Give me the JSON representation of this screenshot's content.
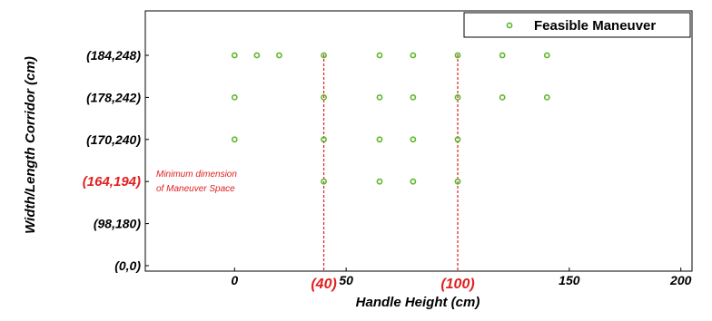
{
  "chart_data": {
    "type": "scatter",
    "xlabel": "Handle Height  (cm)",
    "ylabel": "Width/Length Corridor (cm)",
    "xlim": [
      -40,
      205
    ],
    "x_ticks": [
      {
        "value": 0,
        "label": "0",
        "highlight": false
      },
      {
        "value": 40,
        "label": "(40)",
        "highlight": true
      },
      {
        "value": 50,
        "label": "50",
        "highlight": false
      },
      {
        "value": 100,
        "label": "(100)",
        "highlight": true
      },
      {
        "value": 150,
        "label": "150",
        "highlight": false
      },
      {
        "value": 200,
        "label": "200",
        "highlight": false
      }
    ],
    "y_categories": [
      "(0,0)",
      "(98,180)",
      "(164,194)",
      "(170,240)",
      "(178,242)",
      "(184,248)"
    ],
    "y_highlight": [
      "(164,194)"
    ],
    "legend": {
      "label": "Feasible Maneuver",
      "position": "top-right"
    },
    "series": [
      {
        "name": "Feasible Maneuver",
        "color": "#5cb82e",
        "points": [
          {
            "x": 0,
            "y": "(184,248)"
          },
          {
            "x": 10,
            "y": "(184,248)"
          },
          {
            "x": 20,
            "y": "(184,248)"
          },
          {
            "x": 40,
            "y": "(184,248)"
          },
          {
            "x": 65,
            "y": "(184,248)"
          },
          {
            "x": 80,
            "y": "(184,248)"
          },
          {
            "x": 100,
            "y": "(184,248)"
          },
          {
            "x": 120,
            "y": "(184,248)"
          },
          {
            "x": 140,
            "y": "(184,248)"
          },
          {
            "x": 0,
            "y": "(178,242)"
          },
          {
            "x": 40,
            "y": "(178,242)"
          },
          {
            "x": 65,
            "y": "(178,242)"
          },
          {
            "x": 80,
            "y": "(178,242)"
          },
          {
            "x": 100,
            "y": "(178,242)"
          },
          {
            "x": 120,
            "y": "(178,242)"
          },
          {
            "x": 140,
            "y": "(178,242)"
          },
          {
            "x": 0,
            "y": "(170,240)"
          },
          {
            "x": 40,
            "y": "(170,240)"
          },
          {
            "x": 65,
            "y": "(170,240)"
          },
          {
            "x": 80,
            "y": "(170,240)"
          },
          {
            "x": 100,
            "y": "(170,240)"
          },
          {
            "x": 40,
            "y": "(164,194)"
          },
          {
            "x": 65,
            "y": "(164,194)"
          },
          {
            "x": 80,
            "y": "(164,194)"
          },
          {
            "x": 100,
            "y": "(164,194)"
          }
        ]
      }
    ],
    "vlines": [
      {
        "x": 40,
        "color": "#e02020",
        "style": "dashed"
      },
      {
        "x": 100,
        "color": "#e02020",
        "style": "dashed"
      }
    ],
    "annotation": {
      "lines": [
        "Minimum dimension",
        "of Maneuver Space"
      ],
      "color": "#e02020",
      "near_y": "(164,194)"
    },
    "highlight_color": "#e02020",
    "grid": false
  }
}
